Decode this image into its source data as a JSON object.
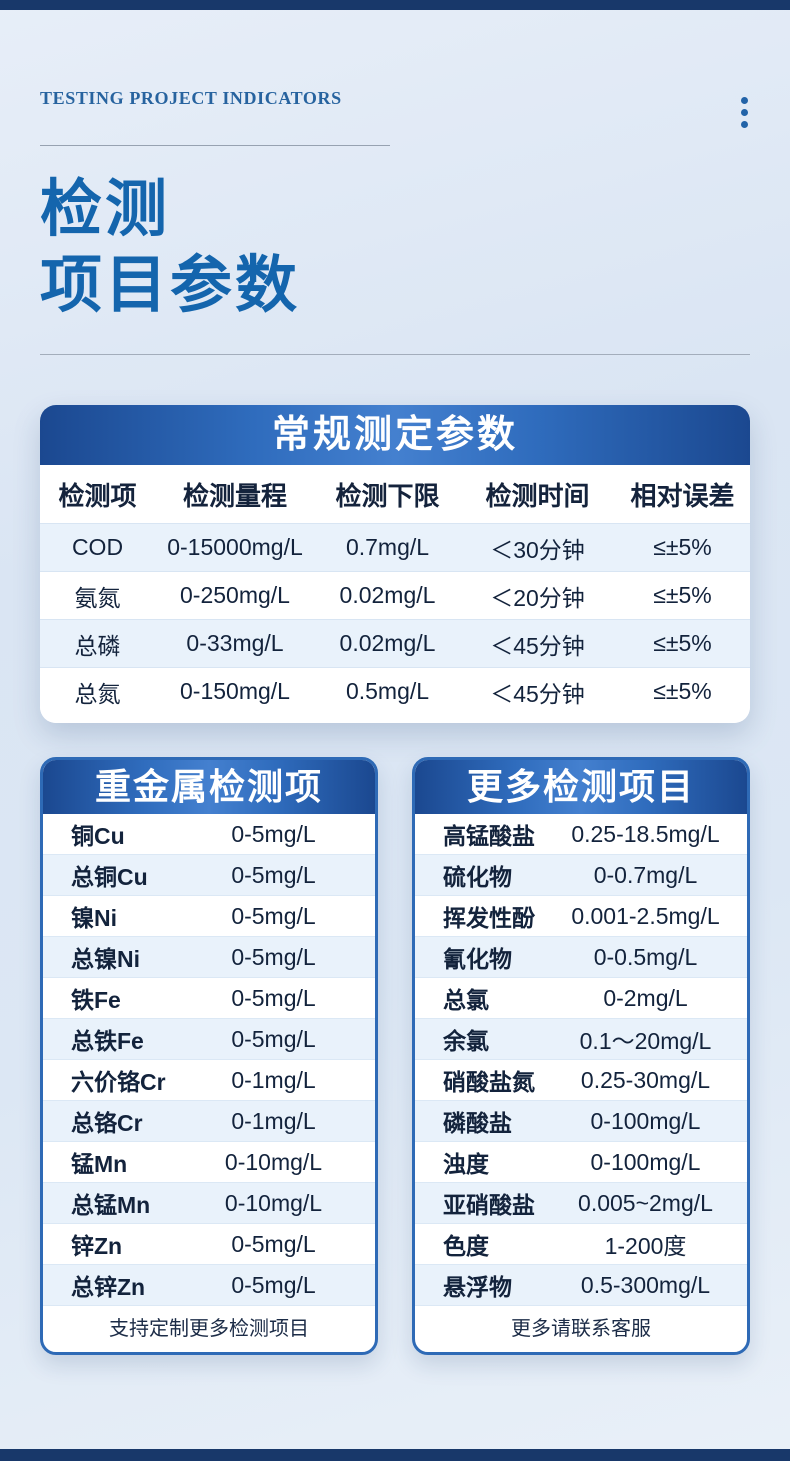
{
  "header": {
    "eyebrow": "TESTING PROJECT INDICATORS",
    "title_line1": "检测",
    "title_line2": "项目参数"
  },
  "main_table": {
    "title": "常规测定参数",
    "headers": [
      "检测项",
      "检测量程",
      "检测下限",
      "检测时间",
      "相对误差"
    ],
    "rows": [
      [
        "COD",
        "0-15000mg/L",
        "0.7mg/L",
        "＜30分钟",
        "≤±5%"
      ],
      [
        "氨氮",
        "0-250mg/L",
        "0.02mg/L",
        "＜20分钟",
        "≤±5%"
      ],
      [
        "总磷",
        "0-33mg/L",
        "0.02mg/L",
        "＜45分钟",
        "≤±5%"
      ],
      [
        "总氮",
        "0-150mg/L",
        "0.5mg/L",
        "＜45分钟",
        "≤±5%"
      ]
    ]
  },
  "left_card": {
    "title": "重金属检测项",
    "rows": [
      {
        "name": "铜Cu",
        "value": "0-5mg/L"
      },
      {
        "name": "总铜Cu",
        "value": "0-5mg/L"
      },
      {
        "name": "镍Ni",
        "value": "0-5mg/L"
      },
      {
        "name": "总镍Ni",
        "value": "0-5mg/L"
      },
      {
        "name": "铁Fe",
        "value": "0-5mg/L"
      },
      {
        "name": "总铁Fe",
        "value": "0-5mg/L"
      },
      {
        "name": "六价铬Cr",
        "value": "0-1mg/L"
      },
      {
        "name": "总铬Cr",
        "value": "0-1mg/L"
      },
      {
        "name": "锰Mn",
        "value": "0-10mg/L"
      },
      {
        "name": "总锰Mn",
        "value": "0-10mg/L"
      },
      {
        "name": "锌Zn",
        "value": "0-5mg/L"
      },
      {
        "name": "总锌Zn",
        "value": "0-5mg/L"
      }
    ],
    "footer": "支持定制更多检测项目"
  },
  "right_card": {
    "title": "更多检测项目",
    "rows": [
      {
        "name": "高锰酸盐",
        "value": "0.25-18.5mg/L"
      },
      {
        "name": "硫化物",
        "value": "0-0.7mg/L"
      },
      {
        "name": "挥发性酚",
        "value": "0.001-2.5mg/L"
      },
      {
        "name": "氰化物",
        "value": "0-0.5mg/L"
      },
      {
        "name": "总氯",
        "value": "0-2mg/L"
      },
      {
        "name": "余氯",
        "value": "0.1～20mg/L"
      },
      {
        "name": "硝酸盐氮",
        "value": "0.25-30mg/L"
      },
      {
        "name": "磷酸盐",
        "value": "0-100mg/L"
      },
      {
        "name": "浊度",
        "value": "0-100mg/L"
      },
      {
        "name": "亚硝酸盐",
        "value": "0.005~2mg/L"
      },
      {
        "name": "色度",
        "value": "1-200度"
      },
      {
        "name": "悬浮物",
        "value": "0.5-300mg/L"
      }
    ],
    "footer": "更多请联系客服"
  },
  "colors": {
    "accent_navy": "#18386a",
    "header_gradient_dark": "#1b4890",
    "header_gradient_light": "#4480cf",
    "title_blue": "#1465ad",
    "row_alt": "#e9f2fb",
    "card_border": "#2e6ab6"
  }
}
